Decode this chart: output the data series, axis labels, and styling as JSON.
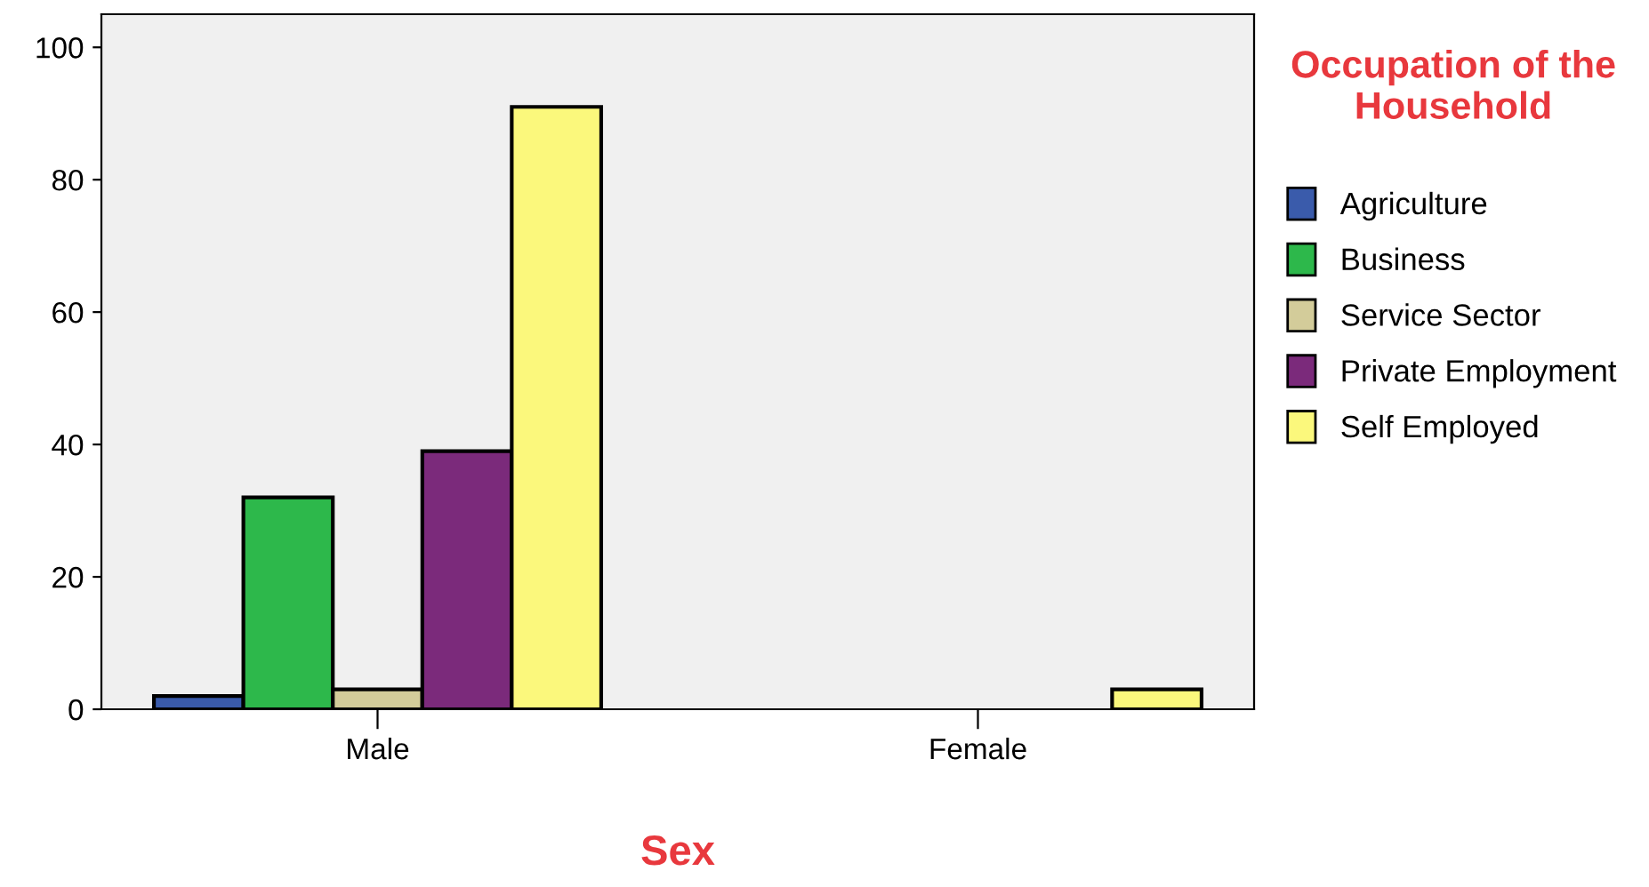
{
  "chart_data": {
    "type": "bar",
    "xlabel": "Sex",
    "legend_title": "Occupation of the Household",
    "categories": [
      "Male",
      "Female"
    ],
    "series": [
      {
        "name": "Agriculture",
        "color": "#3a5bab",
        "values": [
          2,
          null
        ]
      },
      {
        "name": "Business",
        "color": "#2db84b",
        "values": [
          32,
          null
        ]
      },
      {
        "name": "Service Sector",
        "color": "#d3cc9a",
        "values": [
          3,
          null
        ]
      },
      {
        "name": "Private Employment",
        "color": "#7b2a7b",
        "values": [
          39,
          null
        ]
      },
      {
        "name": "Self Employed",
        "color": "#fbf87c",
        "values": [
          91,
          3
        ]
      }
    ],
    "ylim": [
      0,
      105
    ],
    "yticks": [
      0,
      20,
      40,
      60,
      80,
      100
    ],
    "grid": false,
    "legend": "right"
  }
}
